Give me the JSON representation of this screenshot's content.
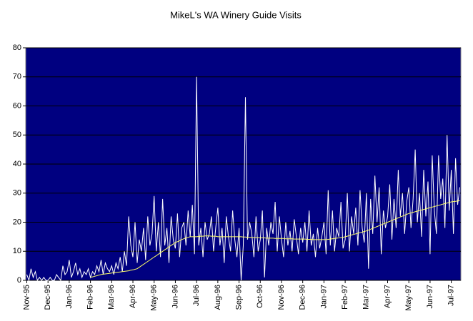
{
  "chart_data": {
    "type": "line",
    "title": "MikeL's WA Winery Guide Visits",
    "categories": [
      "Nov-95",
      null,
      null,
      null,
      null,
      null,
      null,
      null,
      null,
      null,
      "Dec-95",
      null,
      null,
      null,
      null,
      null,
      null,
      null,
      null,
      null,
      "Jan-96",
      null,
      null,
      null,
      null,
      null,
      null,
      null,
      null,
      null,
      "Feb-96",
      null,
      null,
      null,
      null,
      null,
      null,
      null,
      null,
      null,
      "Mar-96",
      null,
      null,
      null,
      null,
      null,
      null,
      null,
      null,
      null,
      "Apr-96",
      null,
      null,
      null,
      null,
      null,
      null,
      null,
      null,
      null,
      "May-96",
      null,
      null,
      null,
      null,
      null,
      null,
      null,
      null,
      null,
      "Jun-96",
      null,
      null,
      null,
      null,
      null,
      null,
      null,
      null,
      null,
      "Jul-96",
      null,
      null,
      null,
      null,
      null,
      null,
      null,
      null,
      null,
      "Aug-96",
      null,
      null,
      null,
      null,
      null,
      null,
      null,
      null,
      null,
      "Sep-96",
      null,
      null,
      null,
      null,
      null,
      null,
      null,
      null,
      null,
      "Oct-96",
      null,
      null,
      null,
      null,
      null,
      null,
      null,
      null,
      null,
      "Nov-96",
      null,
      null,
      null,
      null,
      null,
      null,
      null,
      null,
      null,
      "Dec-96",
      null,
      null,
      null,
      null,
      null,
      null,
      null,
      null,
      null,
      "Jan-97",
      null,
      null,
      null,
      null,
      null,
      null,
      null,
      null,
      null,
      "Feb-97",
      null,
      null,
      null,
      null,
      null,
      null,
      null,
      null,
      null,
      "Mar-97",
      null,
      null,
      null,
      null,
      null,
      null,
      null,
      null,
      null,
      "Apr-97",
      null,
      null,
      null,
      null,
      null,
      null,
      null,
      null,
      null,
      "May-97",
      null,
      null,
      null,
      null,
      null,
      null,
      null,
      null,
      null,
      "Jun-97",
      null,
      null,
      null,
      null,
      null,
      null,
      null,
      null,
      null,
      "Jul-97",
      null,
      null,
      null,
      null
    ],
    "series": [
      {
        "color": "#ffffff",
        "values": [
          2,
          0,
          4,
          1,
          3,
          0,
          1,
          0,
          1,
          0,
          0,
          1,
          0,
          0,
          2,
          1,
          0,
          5,
          2,
          3,
          7,
          1,
          3,
          6,
          2,
          4,
          1,
          3,
          2,
          4,
          1,
          3,
          2,
          5,
          3,
          7,
          2,
          6,
          4,
          3,
          5,
          2,
          6,
          4,
          8,
          3,
          10,
          5,
          22,
          12,
          8,
          20,
          6,
          14,
          10,
          18,
          7,
          22,
          12,
          16,
          29,
          10,
          20,
          8,
          28,
          12,
          18,
          6,
          22,
          14,
          11,
          23,
          8,
          18,
          20,
          12,
          24,
          15,
          26,
          9,
          70,
          12,
          18,
          8,
          20,
          14,
          16,
          22,
          10,
          18,
          25,
          12,
          18,
          6,
          22,
          15,
          10,
          24,
          14,
          8,
          18,
          0,
          12,
          63,
          14,
          20,
          16,
          8,
          22,
          10,
          14,
          24,
          1,
          18,
          12,
          20,
          16,
          27,
          10,
          22,
          14,
          8,
          20,
          12,
          17,
          10,
          21,
          15,
          9,
          18,
          13,
          20,
          10,
          24,
          12,
          16,
          8,
          18,
          11,
          15,
          20,
          9,
          31,
          12,
          24,
          10,
          18,
          15,
          27,
          11,
          14,
          30,
          10,
          22,
          16,
          25,
          12,
          31,
          18,
          13,
          30,
          4,
          28,
          16,
          36,
          20,
          32,
          9,
          24,
          18,
          22,
          33,
          14,
          28,
          18,
          38,
          22,
          30,
          16,
          27,
          32,
          18,
          28,
          45,
          20,
          30,
          15,
          38,
          22,
          34,
          9,
          43,
          24,
          16,
          43,
          28,
          35,
          18,
          50,
          24,
          38,
          16,
          42,
          26,
          32
        ]
      },
      {
        "color": "#ffff66",
        "values": [
          null,
          null,
          null,
          null,
          null,
          null,
          null,
          null,
          null,
          null,
          null,
          null,
          null,
          null,
          null,
          null,
          null,
          null,
          null,
          null,
          null,
          null,
          null,
          null,
          null,
          null,
          null,
          null,
          null,
          null,
          1,
          1.2,
          1.4,
          1.6,
          1.8,
          2,
          2.1,
          2.2,
          2.3,
          2.4,
          2.5,
          2.6,
          2.7,
          2.8,
          2.9,
          3,
          3.1,
          3.2,
          3.3,
          3.5,
          3.6,
          3.8,
          4,
          4.5,
          5,
          5.5,
          6,
          6.5,
          7,
          7.5,
          8,
          8.5,
          9,
          9.5,
          10,
          10.5,
          11,
          11.5,
          12,
          12.5,
          13,
          13.3,
          13.6,
          14,
          14.3,
          14.6,
          14.8,
          15,
          15,
          15,
          15,
          15.1,
          15.2,
          15.2,
          15.3,
          15.3,
          15.3,
          15.2,
          15.2,
          15.2,
          15,
          15,
          15,
          15,
          15,
          15,
          15,
          15,
          15,
          15,
          15,
          15,
          14.9,
          14.9,
          14.8,
          14.8,
          14.8,
          14.7,
          14.7,
          14.7,
          14.6,
          14.6,
          14.6,
          14.5,
          14.5,
          14.5,
          14.5,
          14.4,
          14.4,
          14.4,
          14.4,
          14.4,
          14.3,
          14.3,
          14.3,
          14.3,
          14.2,
          14.2,
          14.2,
          14.2,
          14.2,
          14.2,
          14.1,
          14.1,
          14.1,
          14,
          14,
          14,
          14,
          14,
          14,
          14,
          14.1,
          14.2,
          14.3,
          14.4,
          14.5,
          14.6,
          14.7,
          14.8,
          15,
          15.2,
          15.4,
          15.6,
          15.8,
          16,
          16.2,
          16.4,
          16.6,
          16.8,
          17,
          17.3,
          17.6,
          17.9,
          18.2,
          18.5,
          18.8,
          19.1,
          19.4,
          19.7,
          20,
          20.3,
          20.6,
          20.9,
          21.2,
          21.5,
          21.8,
          22.1,
          22.4,
          22.7,
          23,
          23.2,
          23.4,
          23.6,
          23.8,
          24,
          24.2,
          24.4,
          24.6,
          24.8,
          25,
          25.2,
          25.4,
          25.6,
          25.8,
          26,
          26.2,
          26.4,
          26.6,
          26.8,
          27,
          27.1,
          27.2,
          27.3,
          27.4
        ]
      }
    ],
    "ylim": [
      0,
      80
    ],
    "yticks": [
      0,
      10,
      20,
      30,
      40,
      50,
      60,
      70,
      80
    ],
    "grid": true,
    "background": "#000080"
  }
}
